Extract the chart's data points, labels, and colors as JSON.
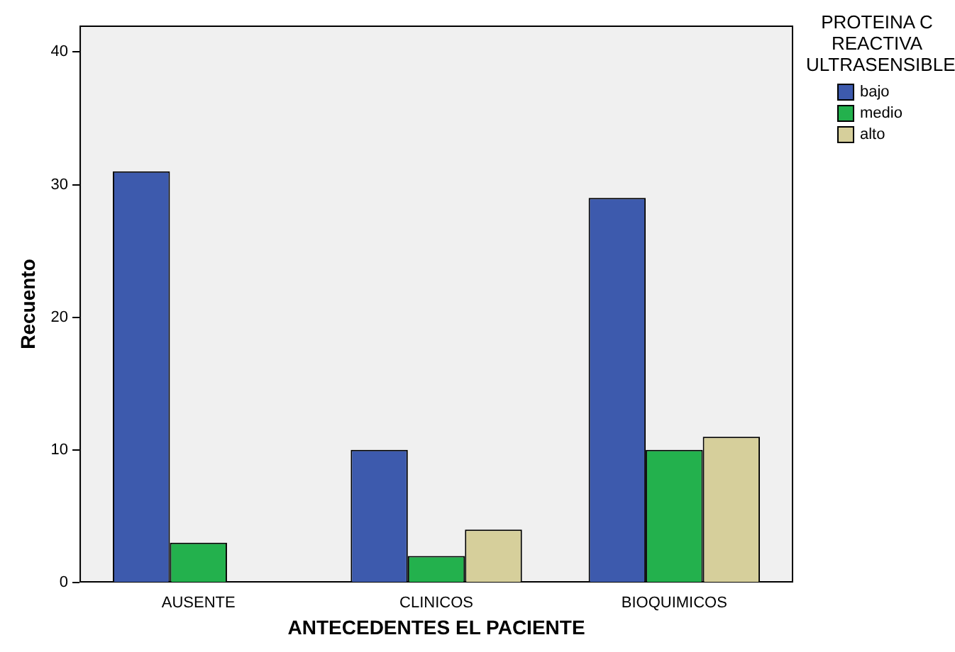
{
  "chart_data": {
    "type": "bar",
    "xlabel": "ANTECEDENTES EL PACIENTE",
    "ylabel": "Recuento",
    "legend_title": "PROTEINA C REACTIVA ULTRASENSIBLE",
    "legend": "top right",
    "grid": false,
    "categories": [
      "AUSENTE",
      "CLINICOS",
      "BIOQUIMICOS"
    ],
    "ylim": [
      0,
      42
    ],
    "yticks": [
      0,
      10,
      20,
      30,
      40
    ],
    "series": [
      {
        "name": "bajo",
        "color": "#3d5aad",
        "values": [
          31,
          10,
          29
        ]
      },
      {
        "name": "medio",
        "color": "#23b14d",
        "values": [
          3,
          2,
          10
        ]
      },
      {
        "name": "alto",
        "color": "#d6cf9b",
        "values": [
          null,
          4,
          11
        ]
      }
    ]
  }
}
